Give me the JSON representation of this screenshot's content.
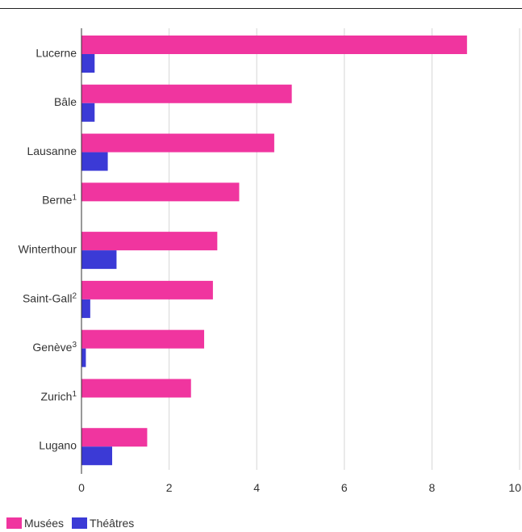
{
  "chart_data": {
    "type": "bar",
    "orientation": "horizontal",
    "categories": [
      "Lucerne",
      "Bâle",
      "Lausanne",
      "Berne",
      "Winterthour",
      "Saint-Gall",
      "Genève",
      "Zurich",
      "Lugano"
    ],
    "category_superscripts": [
      "",
      "",
      "",
      "1",
      "",
      "2",
      "3",
      "1",
      ""
    ],
    "series": [
      {
        "name": "Musées",
        "color": "#f0359f",
        "values": [
          8.8,
          4.8,
          4.4,
          3.6,
          3.1,
          3.0,
          2.8,
          2.5,
          1.5
        ]
      },
      {
        "name": "Théâtres",
        "color": "#3b3ad6",
        "values": [
          0.3,
          0.3,
          0.6,
          0,
          0.8,
          0.2,
          0.1,
          0,
          0.7
        ]
      }
    ],
    "xlim": [
      0,
      10
    ],
    "xticks": [
      "0",
      "2",
      "4",
      "6",
      "8",
      "10"
    ],
    "grid": true,
    "legend_position": "bottom-left"
  }
}
